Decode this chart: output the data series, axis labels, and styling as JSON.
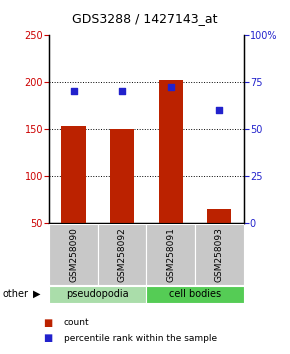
{
  "title": "GDS3288 / 1427143_at",
  "samples": [
    "GSM258090",
    "GSM258092",
    "GSM258091",
    "GSM258093"
  ],
  "counts": [
    153,
    150,
    202,
    65
  ],
  "percentiles": [
    70.5,
    70.5,
    72.5,
    60.0
  ],
  "ylim_left": [
    50,
    250
  ],
  "ylim_right": [
    0,
    100
  ],
  "yticks_left": [
    50,
    100,
    150,
    200,
    250
  ],
  "yticks_right": [
    0,
    25,
    50,
    75,
    100
  ],
  "ytick_labels_right": [
    "0",
    "25",
    "50",
    "75",
    "100%"
  ],
  "hgrid_lines": [
    100,
    150,
    200
  ],
  "bar_color": "#bb2200",
  "dot_color": "#2222cc",
  "sample_label_bg": "#c8c8c8",
  "group_bg_pseudopodia": "#aaddaa",
  "group_bg_cellbodies": "#55cc55",
  "legend_count_label": "count",
  "legend_pct_label": "percentile rank within the sample",
  "bar_width": 0.5,
  "dot_size": 20
}
